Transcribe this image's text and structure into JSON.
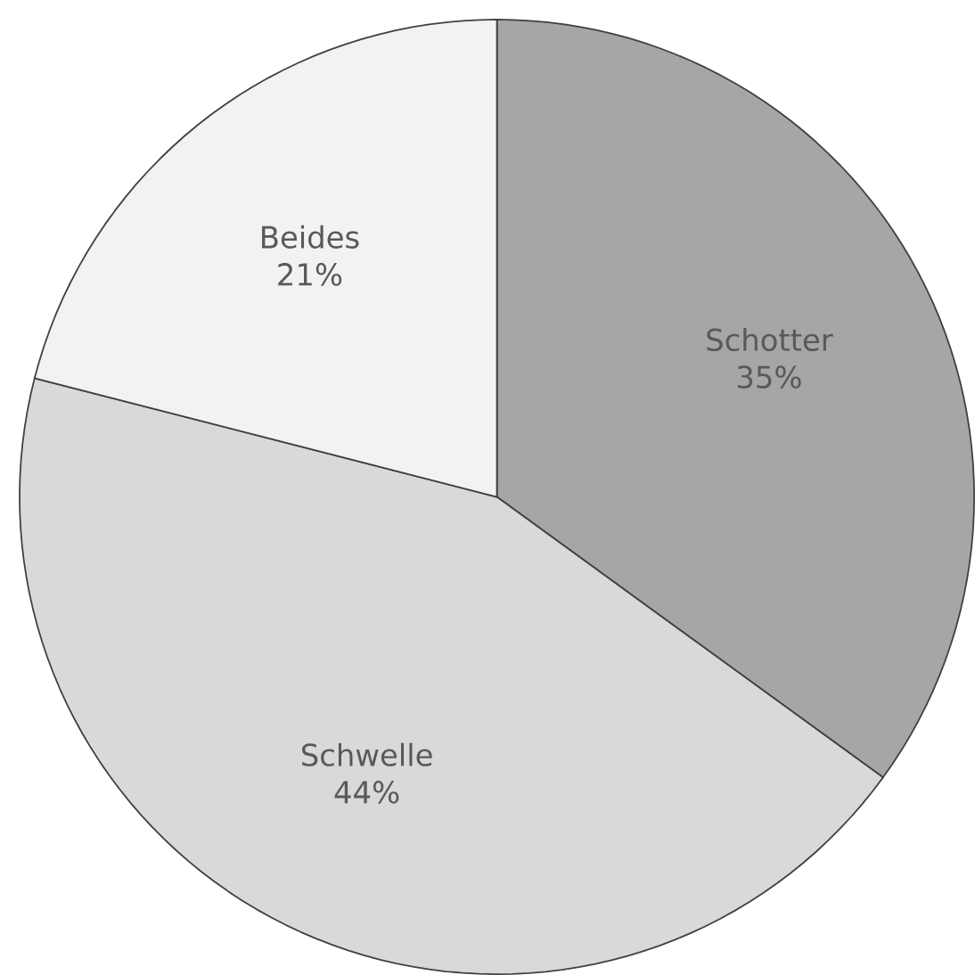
{
  "chart_data": {
    "type": "pie",
    "categories": [
      "Schotter",
      "Schwelle",
      "Beides"
    ],
    "values": [
      35,
      44,
      21
    ],
    "colors": [
      "#a6a6a6",
      "#d9d9d9",
      "#f2f2f2"
    ],
    "value_labels": [
      "35%",
      "44%",
      "21%"
    ]
  }
}
